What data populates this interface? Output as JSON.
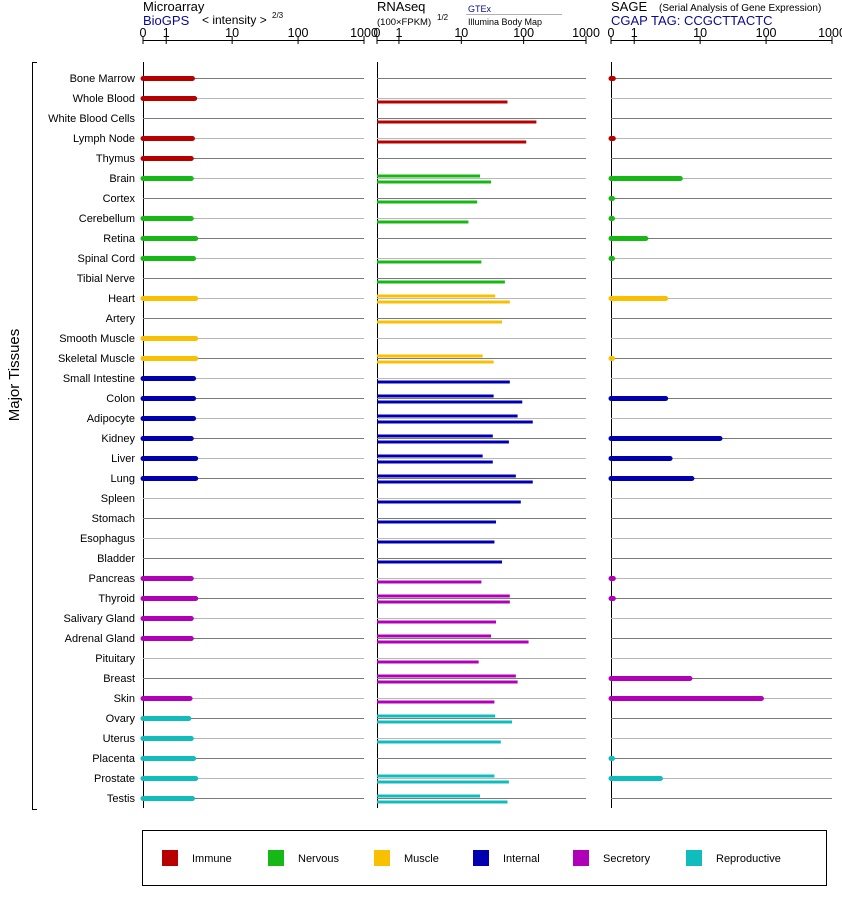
{
  "panels": {
    "microarray": {
      "title": "Microarray",
      "subtitle": "BioGPS",
      "intensity_label": "< intensity >",
      "exponent": "2/3"
    },
    "rnaseq": {
      "title": "RNAseq",
      "unit_label": "(100×FPKM)",
      "exponent": "1/2",
      "source_1": "GTEx",
      "source_2": "Illumina Body Map"
    },
    "sage": {
      "title": "SAGE",
      "title_note": "(Serial Analysis of Gene Expression)",
      "tag_label": "CGAP TAG: CCGCTTACTC"
    }
  },
  "axis_ticks": [
    "0",
    "1",
    "10",
    "100",
    "1000"
  ],
  "y_axis_label": "Major Tissues",
  "chart_data": {
    "type": "bar",
    "tissues": [
      "Bone Marrow",
      "Whole Blood",
      "White Blood Cells",
      "Lymph Node",
      "Thymus",
      "Brain",
      "Cortex",
      "Cerebellum",
      "Retina",
      "Spinal Cord",
      "Tibial Nerve",
      "Heart",
      "Artery",
      "Smooth Muscle",
      "Skeletal Muscle",
      "Small Intestine",
      "Colon",
      "Adipocyte",
      "Kidney",
      "Liver",
      "Lung",
      "Spleen",
      "Stomach",
      "Esophagus",
      "Bladder",
      "Pancreas",
      "Thyroid",
      "Salivary Gland",
      "Adrenal Gland",
      "Pituitary",
      "Breast",
      "Skin",
      "Ovary",
      "Uterus",
      "Placenta",
      "Prostate",
      "Testis"
    ],
    "groups": [
      "Immune",
      "Immune",
      "Immune",
      "Immune",
      "Immune",
      "Nervous",
      "Nervous",
      "Nervous",
      "Nervous",
      "Nervous",
      "Nervous",
      "Muscle",
      "Muscle",
      "Muscle",
      "Muscle",
      "Internal",
      "Internal",
      "Internal",
      "Internal",
      "Internal",
      "Internal",
      "Internal",
      "Internal",
      "Internal",
      "Internal",
      "Secretory",
      "Secretory",
      "Secretory",
      "Secretory",
      "Secretory",
      "Secretory",
      "Secretory",
      "Reproductive",
      "Reproductive",
      "Reproductive",
      "Reproductive",
      "Reproductive"
    ],
    "group_colors": {
      "Immune": "#b80000",
      "Nervous": "#16b816",
      "Muscle": "#f8c000",
      "Internal": "#0000b0",
      "Secretory": "#b000b8",
      "Reproductive": "#10bcbc"
    },
    "scale": {
      "ticks": [
        0,
        1,
        10,
        100,
        1000
      ],
      "xlim": [
        0,
        1000
      ],
      "note": "non-linear (log-like above 1)"
    },
    "microarray": [
      2.5,
      2.7,
      null,
      2.5,
      2.4,
      2.4,
      null,
      2.4,
      2.8,
      2.6,
      null,
      2.8,
      null,
      2.8,
      2.8,
      2.6,
      2.6,
      2.6,
      2.4,
      2.8,
      2.8,
      null,
      null,
      null,
      null,
      2.4,
      2.8,
      2.4,
      2.4,
      null,
      null,
      2.3,
      2.2,
      2.4,
      2.6,
      2.8,
      2.5
    ],
    "rnaseq_gtex": [
      null,
      55,
      160,
      110,
      null,
      20,
      18,
      13,
      null,
      21,
      50,
      35,
      45,
      null,
      22,
      60,
      33,
      80,
      32,
      22,
      75,
      90,
      36,
      34,
      45,
      21,
      60,
      36,
      30,
      19,
      75,
      34,
      35,
      43,
      null,
      34,
      20
    ],
    "rnaseq_ibm": [
      null,
      null,
      null,
      null,
      null,
      30,
      null,
      null,
      null,
      null,
      null,
      60,
      null,
      null,
      33,
      null,
      95,
      140,
      58,
      32,
      140,
      null,
      null,
      null,
      null,
      null,
      60,
      null,
      120,
      null,
      80,
      null,
      65,
      null,
      null,
      58,
      55
    ],
    "sage": [
      0.1,
      null,
      null,
      0.1,
      null,
      5,
      0.05,
      0.05,
      1.5,
      0.05,
      null,
      3,
      null,
      null,
      0.05,
      null,
      3,
      null,
      20,
      3.5,
      7.5,
      null,
      null,
      null,
      null,
      0.1,
      0.1,
      null,
      null,
      null,
      7,
      85,
      null,
      null,
      0.05,
      2.5,
      null
    ]
  },
  "legend": [
    {
      "label": "Immune",
      "color": "#b80000"
    },
    {
      "label": "Nervous",
      "color": "#16b816"
    },
    {
      "label": "Muscle",
      "color": "#f8c000"
    },
    {
      "label": "Internal",
      "color": "#0000b0"
    },
    {
      "label": "Secretory",
      "color": "#b000b8"
    },
    {
      "label": "Reproductive",
      "color": "#10bcbc"
    }
  ]
}
